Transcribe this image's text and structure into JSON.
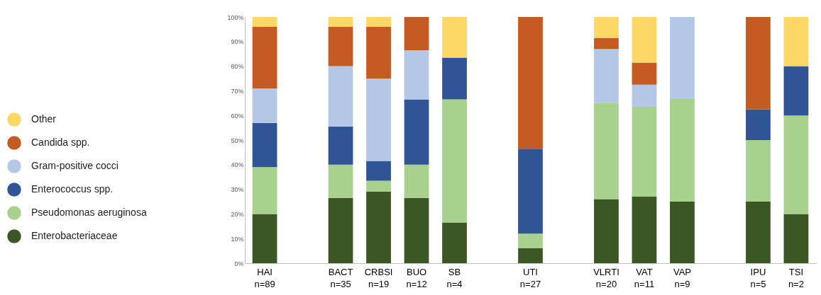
{
  "chart_data": {
    "type": "bar",
    "stacked": true,
    "legend": "left",
    "grid": false,
    "categories": [
      "HAI\nn=89",
      null,
      "BACT\nn=35",
      "CRBSI\nn=19",
      "BUO\nn=12",
      "SB\nn=4",
      null,
      "UTI\nn=27",
      null,
      "VLRTI\nn=20",
      "VAT\nn=11",
      "VAP\nn=9",
      null,
      "IPU\nn=5",
      "TSI\nn=2"
    ],
    "series": [
      {
        "name": "Enterobacteriaceae",
        "color": "#3b5724",
        "values": [
          20,
          null,
          26.5,
          29,
          26.5,
          16.5,
          null,
          6,
          null,
          26,
          27,
          25,
          null,
          25,
          20
        ]
      },
      {
        "name": "Pseudomonas aeruginosa",
        "color": "#a9d18e",
        "values": [
          19,
          null,
          13.5,
          4.5,
          13.5,
          50,
          null,
          6,
          null,
          39,
          36.5,
          42,
          null,
          25,
          40
        ]
      },
      {
        "name": "Enterococcus spp.",
        "color": "#2f5597",
        "values": [
          18,
          null,
          15.5,
          8,
          26.5,
          17,
          null,
          34.5,
          null,
          0,
          0,
          0,
          null,
          12.5,
          20
        ]
      },
      {
        "name": "Gram-positive cocci",
        "color": "#b4c7e7",
        "values": [
          14,
          null,
          24.5,
          33.5,
          20,
          0,
          null,
          0,
          null,
          22,
          9,
          33,
          null,
          0,
          0
        ]
      },
      {
        "name": "Candida spp.",
        "color": "#c55a22",
        "values": [
          25,
          null,
          16,
          21,
          13.5,
          0,
          null,
          53.5,
          null,
          4.5,
          9,
          0,
          null,
          37.5,
          0
        ]
      },
      {
        "name": "Other",
        "color": "#fdd866",
        "values": [
          4,
          null,
          4,
          4,
          0,
          16.5,
          null,
          0,
          null,
          8.5,
          18.5,
          0,
          null,
          0,
          20
        ]
      }
    ],
    "ylim": [
      0,
      100
    ],
    "yticks": [
      {
        "value": 0,
        "label": "0%"
      },
      {
        "value": 10,
        "label": "10%"
      },
      {
        "value": 20,
        "label": "20%"
      },
      {
        "value": 30,
        "label": "30%"
      },
      {
        "value": 40,
        "label": "40%"
      },
      {
        "value": 50,
        "label": "50%"
      },
      {
        "value": 60,
        "label": "60%"
      },
      {
        "value": 70,
        "label": "70%"
      },
      {
        "value": 80,
        "label": "80%"
      },
      {
        "value": 90,
        "label": "90%"
      },
      {
        "value": 100,
        "label": "100%"
      }
    ]
  }
}
